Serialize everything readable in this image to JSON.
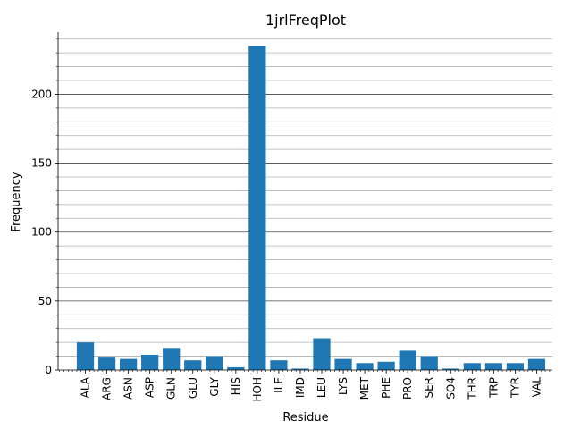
{
  "chart_data": {
    "type": "bar",
    "title": "1jrlFreqPlot",
    "xlabel": "Residue",
    "ylabel": "Frequency",
    "categories": [
      "ALA",
      "ARG",
      "ASN",
      "ASP",
      "GLN",
      "GLU",
      "GLY",
      "HIS",
      "HOH",
      "ILE",
      "IMD",
      "LEU",
      "LYS",
      "MET",
      "PHE",
      "PRO",
      "SER",
      "SO4",
      "THR",
      "TRP",
      "TYR",
      "VAL"
    ],
    "values": [
      20,
      9,
      8,
      11,
      16,
      7,
      10,
      2,
      235,
      7,
      1,
      23,
      8,
      5,
      6,
      14,
      10,
      1,
      5,
      5,
      5,
      8
    ],
    "ylim": [
      0,
      245
    ],
    "yticks": [
      0,
      50,
      100,
      150,
      200
    ],
    "grid": {
      "major": true,
      "minor": true
    },
    "colors": {
      "bar": "#1f77b4",
      "major_grid": "#444444",
      "minor_grid": "#b0b0b0"
    }
  }
}
